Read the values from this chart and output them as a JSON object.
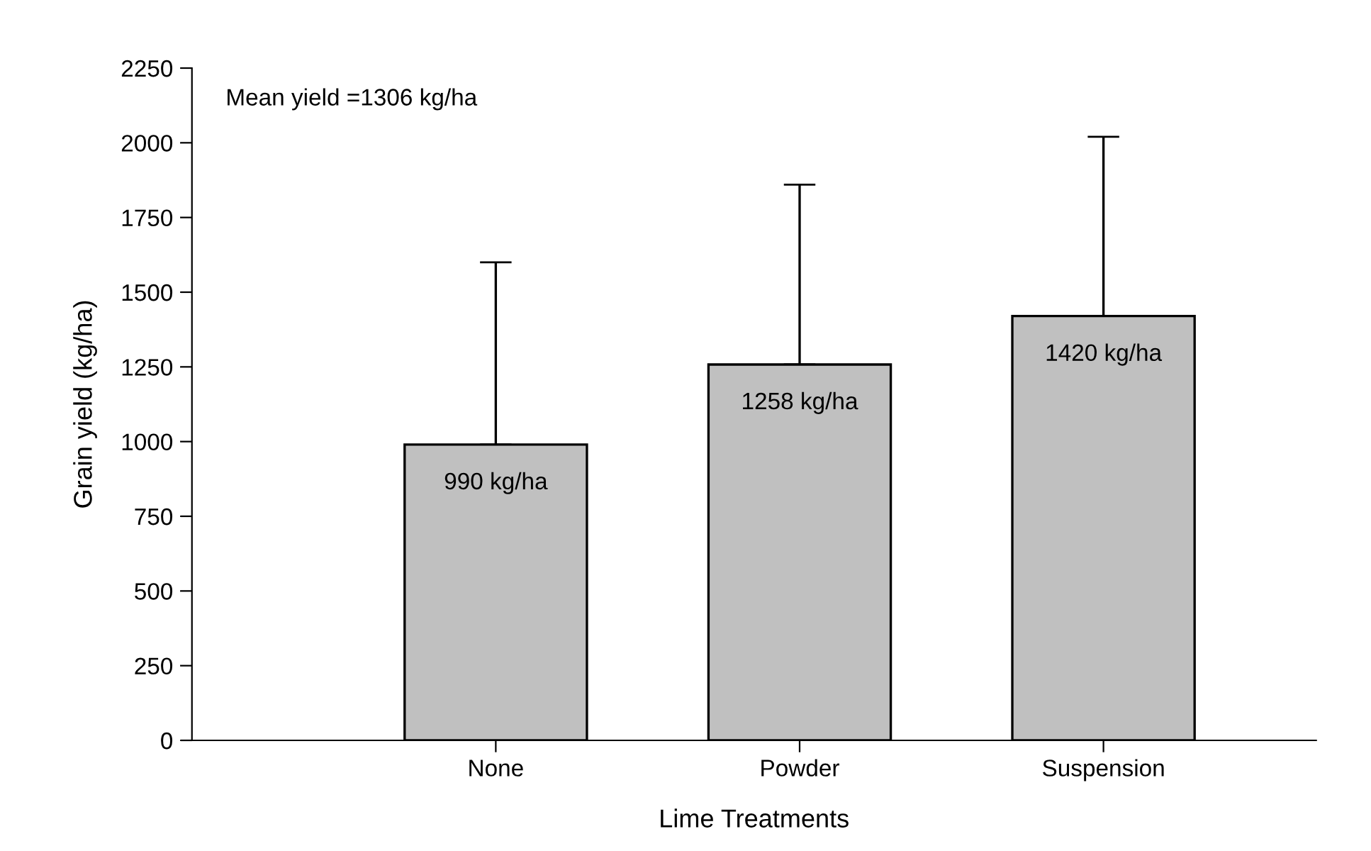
{
  "chart_data": {
    "type": "bar",
    "xlabel": "Lime Treatments",
    "ylabel": "Grain yield (kg/ha)",
    "categories": [
      "None",
      "Powder",
      "Suspension"
    ],
    "values": [
      990,
      1258,
      1420
    ],
    "value_labels": [
      "990 kg/ha",
      "1258 kg/ha",
      "1420 kg/ha"
    ],
    "errors": [
      [
        990,
        1600
      ],
      [
        1258,
        1860
      ],
      [
        1420,
        2020
      ]
    ],
    "color": "#c0c0c0",
    "ylim": [
      0,
      2250
    ],
    "yticks": [
      0,
      250,
      500,
      750,
      1000,
      1250,
      1500,
      1750,
      2000,
      2250
    ],
    "annotations": [
      "Mean yield =1306 kg/ha"
    ],
    "grid": false
  }
}
